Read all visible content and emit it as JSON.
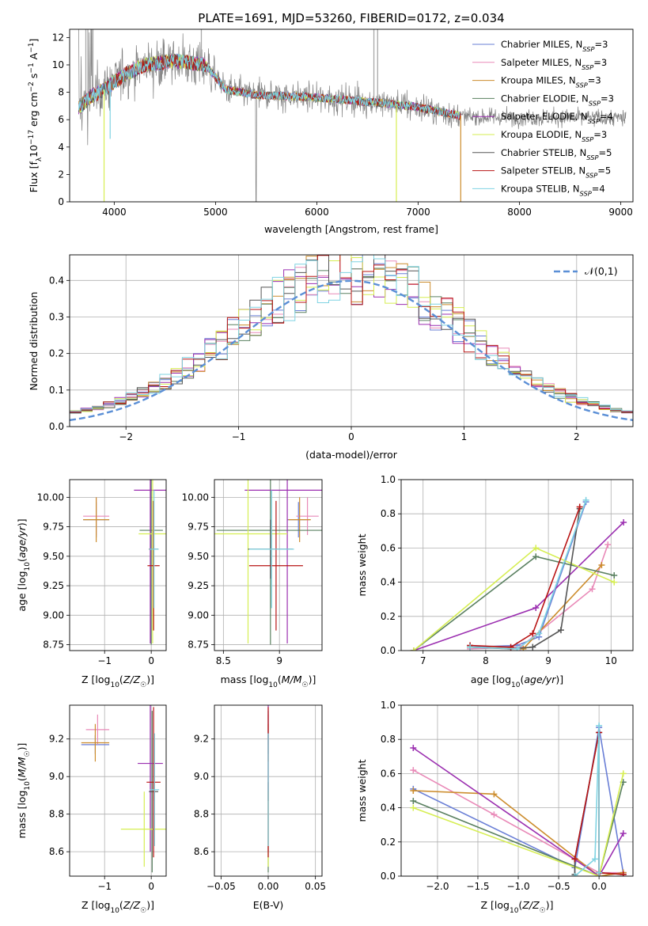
{
  "title": "PLATE=1691, MJD=53260, FIBERID=0172, z=0.034",
  "colors": {
    "Chabrier MILES": "#6a7fd6",
    "Salpeter MILES": "#e98ab8",
    "Kroupa MILES": "#cc8c2c",
    "Chabrier ELODIE": "#5a8060",
    "Salpeter ELODIE": "#9b2fb0",
    "Kroupa ELODIE": "#d6ee52",
    "Chabrier STELIB": "#555555",
    "Salpeter STELIB": "#b81414",
    "Kroupa STELIB": "#7fd3e2"
  },
  "legend_spectrum": [
    {
      "model": "Chabrier MILES",
      "pre": "Chabrier MILES, N",
      "sub": "SSP",
      "post": "=3"
    },
    {
      "model": "Salpeter MILES",
      "pre": "Salpeter MILES, N",
      "sub": "SSP",
      "post": "=3"
    },
    {
      "model": "Kroupa MILES",
      "pre": "Kroupa MILES, N",
      "sub": "SSP",
      "post": "=3"
    },
    {
      "model": "Chabrier ELODIE",
      "pre": "Chabrier ELODIE, N",
      "sub": "SSP",
      "post": "=3"
    },
    {
      "model": "Salpeter ELODIE",
      "pre": "Salpeter ELODIE, N",
      "sub": "SSP",
      "post": "=4"
    },
    {
      "model": "Kroupa ELODIE",
      "pre": "Kroupa ELODIE, N",
      "sub": "SSP",
      "post": "=3"
    },
    {
      "model": "Chabrier STELIB",
      "pre": "Chabrier STELIB, N",
      "sub": "SSP",
      "post": "=5"
    },
    {
      "model": "Salpeter STELIB",
      "pre": "Salpeter STELIB, N",
      "sub": "SSP",
      "post": "=5"
    },
    {
      "model": "Kroupa STELIB",
      "pre": "Kroupa STELIB, N",
      "sub": "SSP",
      "post": "=4"
    }
  ],
  "chart_data": [
    {
      "id": "spectrum",
      "type": "line",
      "xlabel": "wavelength [Angstrom, rest frame]",
      "ylabel": "Flux [f_λ 10^-17 erg cm^-2 s^-1 A^-1]",
      "xlim": [
        3560,
        9120
      ],
      "ylim": [
        0,
        12.6
      ],
      "xticks": [
        4000,
        5000,
        6000,
        7000,
        8000,
        9000
      ],
      "yticks": [
        0,
        2,
        4,
        6,
        8,
        10,
        12
      ],
      "data_series": {
        "name": "data",
        "color": "#808080",
        "wavelength_range": [
          3650,
          9050
        ]
      },
      "continuum": {
        "x": [
          3650,
          3750,
          3900,
          4100,
          4300,
          4600,
          4900,
          5100,
          5400,
          5800,
          6200,
          6500,
          6800,
          7000,
          7200,
          7400
        ],
        "y": [
          6.8,
          7.6,
          8.2,
          9.3,
          10.0,
          10.3,
          10.0,
          8.2,
          7.8,
          7.7,
          7.5,
          7.3,
          7.1,
          6.9,
          6.6,
          6.3
        ]
      },
      "model_range": [
        3650,
        7420
      ],
      "absorption_dips": [
        {
          "model": "Kroupa ELODIE",
          "x": 3900,
          "y": 0
        },
        {
          "model": "Kroupa ELODIE",
          "x": 6785,
          "y": 0
        },
        {
          "model": "Kroupa MILES",
          "x": 7420,
          "y": 0
        },
        {
          "model": "Kroupa STELIB",
          "x": 3960,
          "y": 4.6
        }
      ]
    },
    {
      "id": "residuals",
      "type": "histogram",
      "xlabel": "(data-model)/error",
      "ylabel": "Normed distribution",
      "xlim": [
        -2.5,
        2.5
      ],
      "ylim": [
        0,
        0.47
      ],
      "xticks": [
        -2,
        -1,
        0,
        1,
        2
      ],
      "yticks": [
        0.0,
        0.1,
        0.2,
        0.3,
        0.4
      ],
      "bin_width": 0.1,
      "reference": {
        "label": "𝒩(0,1)",
        "mean": 0,
        "sigma": 1,
        "color": "#5b8fd6"
      }
    },
    {
      "id": "age_vs_Z",
      "type": "errorbar",
      "xlabel": "Z [log₁₀(Z/Z☉)]",
      "ylabel": "age  [log₁₀(age/yr)]",
      "xlim": [
        -1.75,
        0.32
      ],
      "ylim": [
        8.7,
        10.15
      ],
      "xticks": [
        -1,
        0
      ],
      "yticks": [
        8.75,
        9.0,
        9.25,
        9.5,
        9.75,
        10.0
      ],
      "points": [
        {
          "model": "Chabrier MILES",
          "x": -1.18,
          "y": 9.81,
          "xerr": 0.28,
          "yerr": 0.15
        },
        {
          "model": "Salpeter MILES",
          "x": -1.18,
          "y": 9.84,
          "xerr": 0.28,
          "yerr": 0.16
        },
        {
          "model": "Kroupa MILES",
          "x": -1.18,
          "y": 9.81,
          "xerr": 0.28,
          "yerr": 0.19
        },
        {
          "model": "Chabrier ELODIE",
          "x": 0.0,
          "y": 9.72,
          "xerr": 0.25,
          "yerr": 0.97
        },
        {
          "model": "Salpeter ELODIE",
          "x": -0.02,
          "y": 10.06,
          "xerr": 0.35,
          "yerr": 1.3
        },
        {
          "model": "Kroupa ELODIE",
          "x": 0.03,
          "y": 9.69,
          "xerr": 0.3,
          "yerr": 0.93
        },
        {
          "model": "Chabrier STELIB",
          "x": 0.05,
          "y": 9.56,
          "xerr": 0.1,
          "yerr": 0.25
        },
        {
          "model": "Salpeter STELIB",
          "x": 0.05,
          "y": 9.42,
          "xerr": 0.13,
          "yerr": 0.55
        },
        {
          "model": "Kroupa STELIB",
          "x": 0.06,
          "y": 9.56,
          "xerr": 0.1,
          "yerr": 0.5
        }
      ]
    },
    {
      "id": "age_vs_mass",
      "type": "errorbar",
      "xlabel": "mass [log₁₀(M/M☉)]",
      "ylabel": "",
      "xlim": [
        8.42,
        9.38
      ],
      "ylim": [
        8.7,
        10.15
      ],
      "xticks": [
        8.5,
        9.0
      ],
      "yticks": [
        8.75,
        9.0,
        9.25,
        9.5,
        9.75,
        10.0
      ],
      "points": [
        {
          "model": "Chabrier MILES",
          "x": 9.17,
          "y": 9.81,
          "xerr": 0.1,
          "yerr": 0.15
        },
        {
          "model": "Salpeter MILES",
          "x": 9.25,
          "y": 9.84,
          "xerr": 0.1,
          "yerr": 0.16
        },
        {
          "model": "Kroupa MILES",
          "x": 9.18,
          "y": 9.81,
          "xerr": 0.1,
          "yerr": 0.19
        },
        {
          "model": "Chabrier ELODIE",
          "x": 8.92,
          "y": 9.72,
          "xerr": 0.48,
          "yerr": 0.97
        },
        {
          "model": "Salpeter ELODIE",
          "x": 9.07,
          "y": 10.06,
          "xerr": 0.38,
          "yerr": 1.3
        },
        {
          "model": "Kroupa ELODIE",
          "x": 8.72,
          "y": 9.69,
          "xerr": 0.35,
          "yerr": 0.93
        },
        {
          "model": "Chabrier STELIB",
          "x": 8.92,
          "y": 9.56,
          "xerr": 0.2,
          "yerr": 0.25
        },
        {
          "model": "Salpeter STELIB",
          "x": 8.97,
          "y": 9.42,
          "xerr": 0.24,
          "yerr": 0.55
        },
        {
          "model": "Kroupa STELIB",
          "x": 8.93,
          "y": 9.56,
          "xerr": 0.2,
          "yerr": 0.5
        }
      ]
    },
    {
      "id": "massweight_vs_age",
      "type": "line",
      "xlabel": "age  [log₁₀(age/yr)]",
      "ylabel": "mass weight",
      "xlim": [
        6.65,
        10.35
      ],
      "ylim": [
        0,
        1.0
      ],
      "xticks": [
        7,
        8,
        9,
        10
      ],
      "yticks": [
        0.0,
        0.2,
        0.4,
        0.6,
        0.8,
        1.0
      ],
      "series": [
        {
          "model": "Chabrier MILES",
          "x": [
            7.75,
            8.5,
            8.85,
            9.6
          ],
          "y": [
            0.02,
            0.03,
            0.08,
            0.87
          ]
        },
        {
          "model": "Salpeter MILES",
          "x": [
            7.75,
            8.55,
            9.7,
            9.95
          ],
          "y": [
            0.01,
            0.02,
            0.36,
            0.62
          ]
        },
        {
          "model": "Kroupa MILES",
          "x": [
            7.75,
            8.6,
            9.85
          ],
          "y": [
            0.02,
            0.01,
            0.5
          ]
        },
        {
          "model": "Chabrier ELODIE",
          "x": [
            6.85,
            8.8,
            10.05
          ],
          "y": [
            0.0,
            0.55,
            0.44
          ]
        },
        {
          "model": "Salpeter ELODIE",
          "x": [
            6.85,
            8.8,
            10.2
          ],
          "y": [
            0.0,
            0.25,
            0.75
          ]
        },
        {
          "model": "Kroupa ELODIE",
          "x": [
            6.85,
            8.8,
            10.05
          ],
          "y": [
            0.0,
            0.6,
            0.4
          ]
        },
        {
          "model": "Chabrier STELIB",
          "x": [
            7.75,
            8.4,
            8.75,
            9.2,
            9.5
          ],
          "y": [
            0.02,
            0.01,
            0.02,
            0.12,
            0.83
          ]
        },
        {
          "model": "Salpeter STELIB",
          "x": [
            7.75,
            8.4,
            8.75,
            9.5
          ],
          "y": [
            0.03,
            0.02,
            0.1,
            0.84
          ]
        },
        {
          "model": "Kroupa STELIB",
          "x": [
            7.75,
            8.5,
            8.85,
            9.6
          ],
          "y": [
            0.02,
            0.01,
            0.1,
            0.88
          ]
        }
      ]
    },
    {
      "id": "mass_vs_Z",
      "type": "errorbar",
      "xlabel": "Z [log₁₀(Z/Z☉)]",
      "ylabel": "mass [log₁₀(M/M☉)]",
      "xlim": [
        -1.75,
        0.32
      ],
      "ylim": [
        8.47,
        9.38
      ],
      "xticks": [
        -1,
        0
      ],
      "yticks": [
        8.6,
        8.8,
        9.0,
        9.2
      ],
      "points": [
        {
          "model": "Chabrier MILES",
          "x": -1.2,
          "y": 9.17,
          "xerr": 0.3,
          "yerr": 0.05
        },
        {
          "model": "Salpeter MILES",
          "x": -1.15,
          "y": 9.25,
          "xerr": 0.25,
          "yerr": 0.08
        },
        {
          "model": "Kroupa MILES",
          "x": -1.2,
          "y": 9.18,
          "xerr": 0.3,
          "yerr": 0.1
        },
        {
          "model": "Chabrier ELODIE",
          "x": 0.02,
          "y": 8.92,
          "xerr": 0.05,
          "yerr": 0.43
        },
        {
          "model": "Salpeter ELODIE",
          "x": -0.02,
          "y": 9.07,
          "xerr": 0.27,
          "yerr": 0.47
        },
        {
          "model": "Kroupa ELODIE",
          "x": -0.15,
          "y": 8.72,
          "xerr": 0.5,
          "yerr": 0.2
        },
        {
          "model": "Chabrier STELIB",
          "x": 0.05,
          "y": 8.92,
          "xerr": 0.1,
          "yerr": 0.05
        },
        {
          "model": "Salpeter STELIB",
          "x": 0.05,
          "y": 8.97,
          "xerr": 0.15,
          "yerr": 0.4
        },
        {
          "model": "Kroupa STELIB",
          "x": 0.07,
          "y": 8.93,
          "xerr": 0.1,
          "yerr": 0.3
        }
      ]
    },
    {
      "id": "mass_vs_EBV",
      "type": "errorbar",
      "xlabel": "E(B-V)",
      "ylabel": "",
      "xlim": [
        -0.057,
        0.057
      ],
      "ylim": [
        8.47,
        9.38
      ],
      "xticks": [
        -0.05,
        0.0,
        0.05
      ],
      "yticks": [
        8.6,
        8.8,
        9.0,
        9.2
      ],
      "points": [
        {
          "model": "Chabrier MILES",
          "x": 0.0,
          "y": 9.17,
          "xerr": 0.0,
          "yerr": 0.05
        },
        {
          "model": "Salpeter MILES",
          "x": 0.0,
          "y": 9.25,
          "xerr": 0.0,
          "yerr": 0.08
        },
        {
          "model": "Kroupa MILES",
          "x": 0.0,
          "y": 9.18,
          "xerr": 0.0,
          "yerr": 0.1
        },
        {
          "model": "Chabrier ELODIE",
          "x": 0.0,
          "y": 8.92,
          "xerr": 0.0,
          "yerr": 0.43
        },
        {
          "model": "Salpeter ELODIE",
          "x": 0.0,
          "y": 9.07,
          "xerr": 0.0,
          "yerr": 0.47
        },
        {
          "model": "Kroupa ELODIE",
          "x": 0.0,
          "y": 8.72,
          "xerr": 0.0,
          "yerr": 0.2
        },
        {
          "model": "Chabrier STELIB",
          "x": 0.0,
          "y": 8.92,
          "xerr": 0.0,
          "yerr": 0.05
        },
        {
          "model": "Salpeter STELIB",
          "x": 0.0,
          "y": 8.97,
          "xerr": 0.0,
          "yerr": 0.4
        },
        {
          "model": "Kroupa STELIB",
          "x": 0.0,
          "y": 8.93,
          "xerr": 0.0,
          "yerr": 0.3
        }
      ]
    },
    {
      "id": "massweight_vs_Z",
      "type": "line",
      "xlabel": "Z [log₁₀(Z/Z☉)]",
      "ylabel": "mass weight",
      "xlim": [
        -2.45,
        0.42
      ],
      "ylim": [
        0,
        1.0
      ],
      "xticks": [
        -2.0,
        -1.5,
        -1.0,
        -0.5,
        0.0
      ],
      "yticks": [
        0.0,
        0.2,
        0.4,
        0.6,
        0.8,
        1.0
      ],
      "series": [
        {
          "model": "Chabrier MILES",
          "x": [
            -2.3,
            -0.3,
            0.0,
            0.3
          ],
          "y": [
            0.51,
            0.05,
            0.87,
            0.02
          ]
        },
        {
          "model": "Salpeter MILES",
          "x": [
            -2.3,
            -1.3,
            0.0,
            0.3
          ],
          "y": [
            0.62,
            0.36,
            0.02,
            0.02
          ]
        },
        {
          "model": "Kroupa MILES",
          "x": [
            -2.3,
            -1.3,
            0.0,
            0.3
          ],
          "y": [
            0.5,
            0.48,
            0.0,
            0.02
          ]
        },
        {
          "model": "Chabrier ELODIE",
          "x": [
            -2.3,
            0.0,
            0.3
          ],
          "y": [
            0.44,
            0.0,
            0.55
          ]
        },
        {
          "model": "Salpeter ELODIE",
          "x": [
            -2.3,
            0.0,
            0.3
          ],
          "y": [
            0.75,
            0.0,
            0.25
          ]
        },
        {
          "model": "Kroupa ELODIE",
          "x": [
            -2.3,
            0.0,
            0.3
          ],
          "y": [
            0.4,
            0.0,
            0.6
          ]
        },
        {
          "model": "Chabrier STELIB",
          "x": [
            -0.3,
            -0.3,
            0.0,
            0.0,
            0.3
          ],
          "y": [
            0.01,
            0.1,
            0.84,
            0.02,
            0.01
          ]
        },
        {
          "model": "Salpeter STELIB",
          "x": [
            -0.3,
            0.0,
            0.0,
            0.3
          ],
          "y": [
            0.1,
            0.84,
            0.02,
            0.01
          ]
        },
        {
          "model": "Kroupa STELIB",
          "x": [
            -0.3,
            -0.05,
            0.0,
            0.0
          ],
          "y": [
            0.0,
            0.1,
            0.88,
            0.02
          ]
        }
      ]
    }
  ]
}
